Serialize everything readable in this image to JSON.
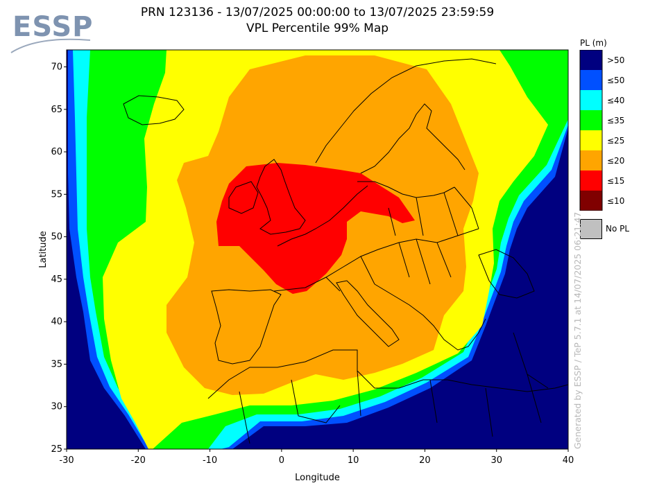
{
  "logo": {
    "text": "ESSP"
  },
  "title": {
    "line1": "PRN 123136 - 13/07/2025 00:00:00 to 13/07/2025 23:59:59",
    "line2": "VPL Percentile 99% Map"
  },
  "axes": {
    "xlabel": "Longitude",
    "ylabel": "Latitude",
    "x_ticks": [
      "-30",
      "-20",
      "-10",
      "0",
      "10",
      "20",
      "30",
      "40"
    ],
    "y_ticks": [
      "25",
      "30",
      "35",
      "40",
      "45",
      "50",
      "55",
      "60",
      "65",
      "70"
    ],
    "lon_range": [
      -30,
      40
    ],
    "lat_range": [
      25,
      72
    ]
  },
  "legend": {
    "title": "PL (m)",
    "items": [
      {
        "label": ">50",
        "color": "#000080"
      },
      {
        "label": "≤50",
        "color": "#0050ff"
      },
      {
        "label": "≤40",
        "color": "#00ffff"
      },
      {
        "label": "≤35",
        "color": "#00ff00"
      },
      {
        "label": "≤25",
        "color": "#ffff00"
      },
      {
        "label": "≤20",
        "color": "#ffa500"
      },
      {
        "label": "≤15",
        "color": "#ff0000"
      },
      {
        "label": "≤10",
        "color": "#800000"
      }
    ],
    "no_pl": {
      "label": "No PL",
      "color": "#c0c0c0"
    }
  },
  "credit": "Generated by ESSP / TeP 5.7.1 at 14/07/2025 06:21:47"
}
